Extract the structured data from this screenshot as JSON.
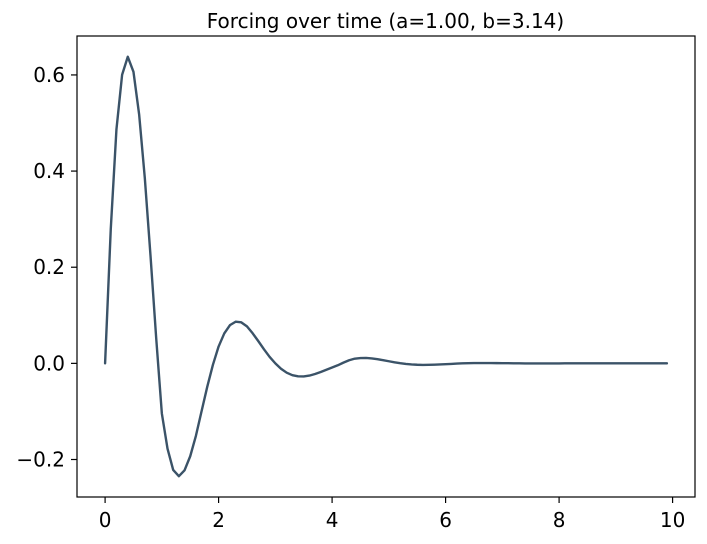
{
  "chart_data": {
    "type": "line",
    "title": "Forcing over time (a=1.00, b=3.14)",
    "xlabel": "",
    "ylabel": "",
    "xlim": [
      -0.495,
      10.395
    ],
    "ylim": [
      -0.278,
      0.681
    ],
    "x_ticks": [
      0,
      2,
      4,
      6,
      8,
      10
    ],
    "y_ticks": [
      -0.2,
      0.0,
      0.2,
      0.4,
      0.6
    ],
    "x_tick_labels": [
      "0",
      "2",
      "4",
      "6",
      "8",
      "10"
    ],
    "y_tick_labels": [
      "−0.2",
      "0.0",
      "0.2",
      "0.4",
      "0.6"
    ],
    "grid": false,
    "legend": "none",
    "series": [
      {
        "color": "#3b5368",
        "x": [
          0,
          0.1,
          0.2,
          0.3,
          0.4,
          0.5,
          0.6,
          0.7,
          0.8,
          0.9,
          1.0,
          1.1,
          1.2,
          1.3,
          1.4,
          1.5,
          1.6,
          1.7,
          1.8,
          1.9,
          2.0,
          2.1,
          2.2,
          2.3,
          2.4,
          2.5,
          2.6,
          2.7,
          2.8,
          2.9,
          3.0,
          3.1,
          3.2,
          3.3,
          3.4,
          3.5,
          3.6,
          3.7,
          3.8,
          3.9,
          4.0,
          4.1,
          4.2,
          4.3,
          4.4,
          4.5,
          4.6,
          4.7,
          4.8,
          4.9,
          5.0,
          5.1,
          5.2,
          5.3,
          5.4,
          5.5,
          5.6,
          5.7,
          5.8,
          5.9,
          6.0,
          6.1,
          6.2,
          6.3,
          6.4,
          6.5,
          6.6,
          6.7,
          6.8,
          6.9,
          7.0,
          7.1,
          7.2,
          7.3,
          7.4,
          7.5,
          7.6,
          7.7,
          7.8,
          7.9,
          8.0,
          8.1,
          8.2,
          8.3,
          8.4,
          8.5,
          8.6,
          8.7,
          8.8,
          8.9,
          9.0,
          9.1,
          9.2,
          9.3,
          9.4,
          9.5,
          9.6,
          9.7,
          9.8,
          9.9
        ],
        "y": [
          0.0,
          0.2796,
          0.4867,
          0.6004,
          0.6378,
          0.6065,
          0.5178,
          0.3853,
          0.2245,
          0.0532,
          -0.1041,
          -0.1774,
          -0.2217,
          -0.2347,
          -0.2225,
          -0.1932,
          -0.1509,
          -0.0997,
          -0.0488,
          -0.003,
          0.035,
          0.0622,
          0.0795,
          0.0866,
          0.0853,
          0.077,
          0.0626,
          0.0463,
          0.0292,
          0.0134,
          0.0,
          -0.0112,
          -0.0194,
          -0.0246,
          -0.027,
          -0.0271,
          -0.0255,
          -0.0221,
          -0.0179,
          -0.0132,
          -0.0087,
          -0.004,
          0.0015,
          0.0065,
          0.0098,
          0.0111,
          0.0112,
          0.0103,
          0.0087,
          0.0066,
          0.0044,
          0.0022,
          0.0004,
          -0.0011,
          -0.0022,
          -0.0029,
          -0.0032,
          -0.0031,
          -0.0028,
          -0.0023,
          -0.0017,
          -0.0011,
          -0.0005,
          0.0,
          0.0004,
          0.0006,
          0.0007,
          0.0007,
          0.0006,
          0.0005,
          0.0004,
          0.0003,
          0.0001,
          0.0,
          -0.0001,
          -0.0001,
          -0.0002,
          -0.0002,
          -0.0001,
          -0.0001,
          -0.0001,
          0.0,
          0.0,
          0.0,
          0.0,
          0.0,
          0.0,
          0.0,
          0.0,
          0.0,
          0.0,
          0.0,
          0.0,
          0.0,
          0.0,
          0.0,
          0.0,
          0.0,
          0.0,
          0.0
        ]
      }
    ]
  }
}
